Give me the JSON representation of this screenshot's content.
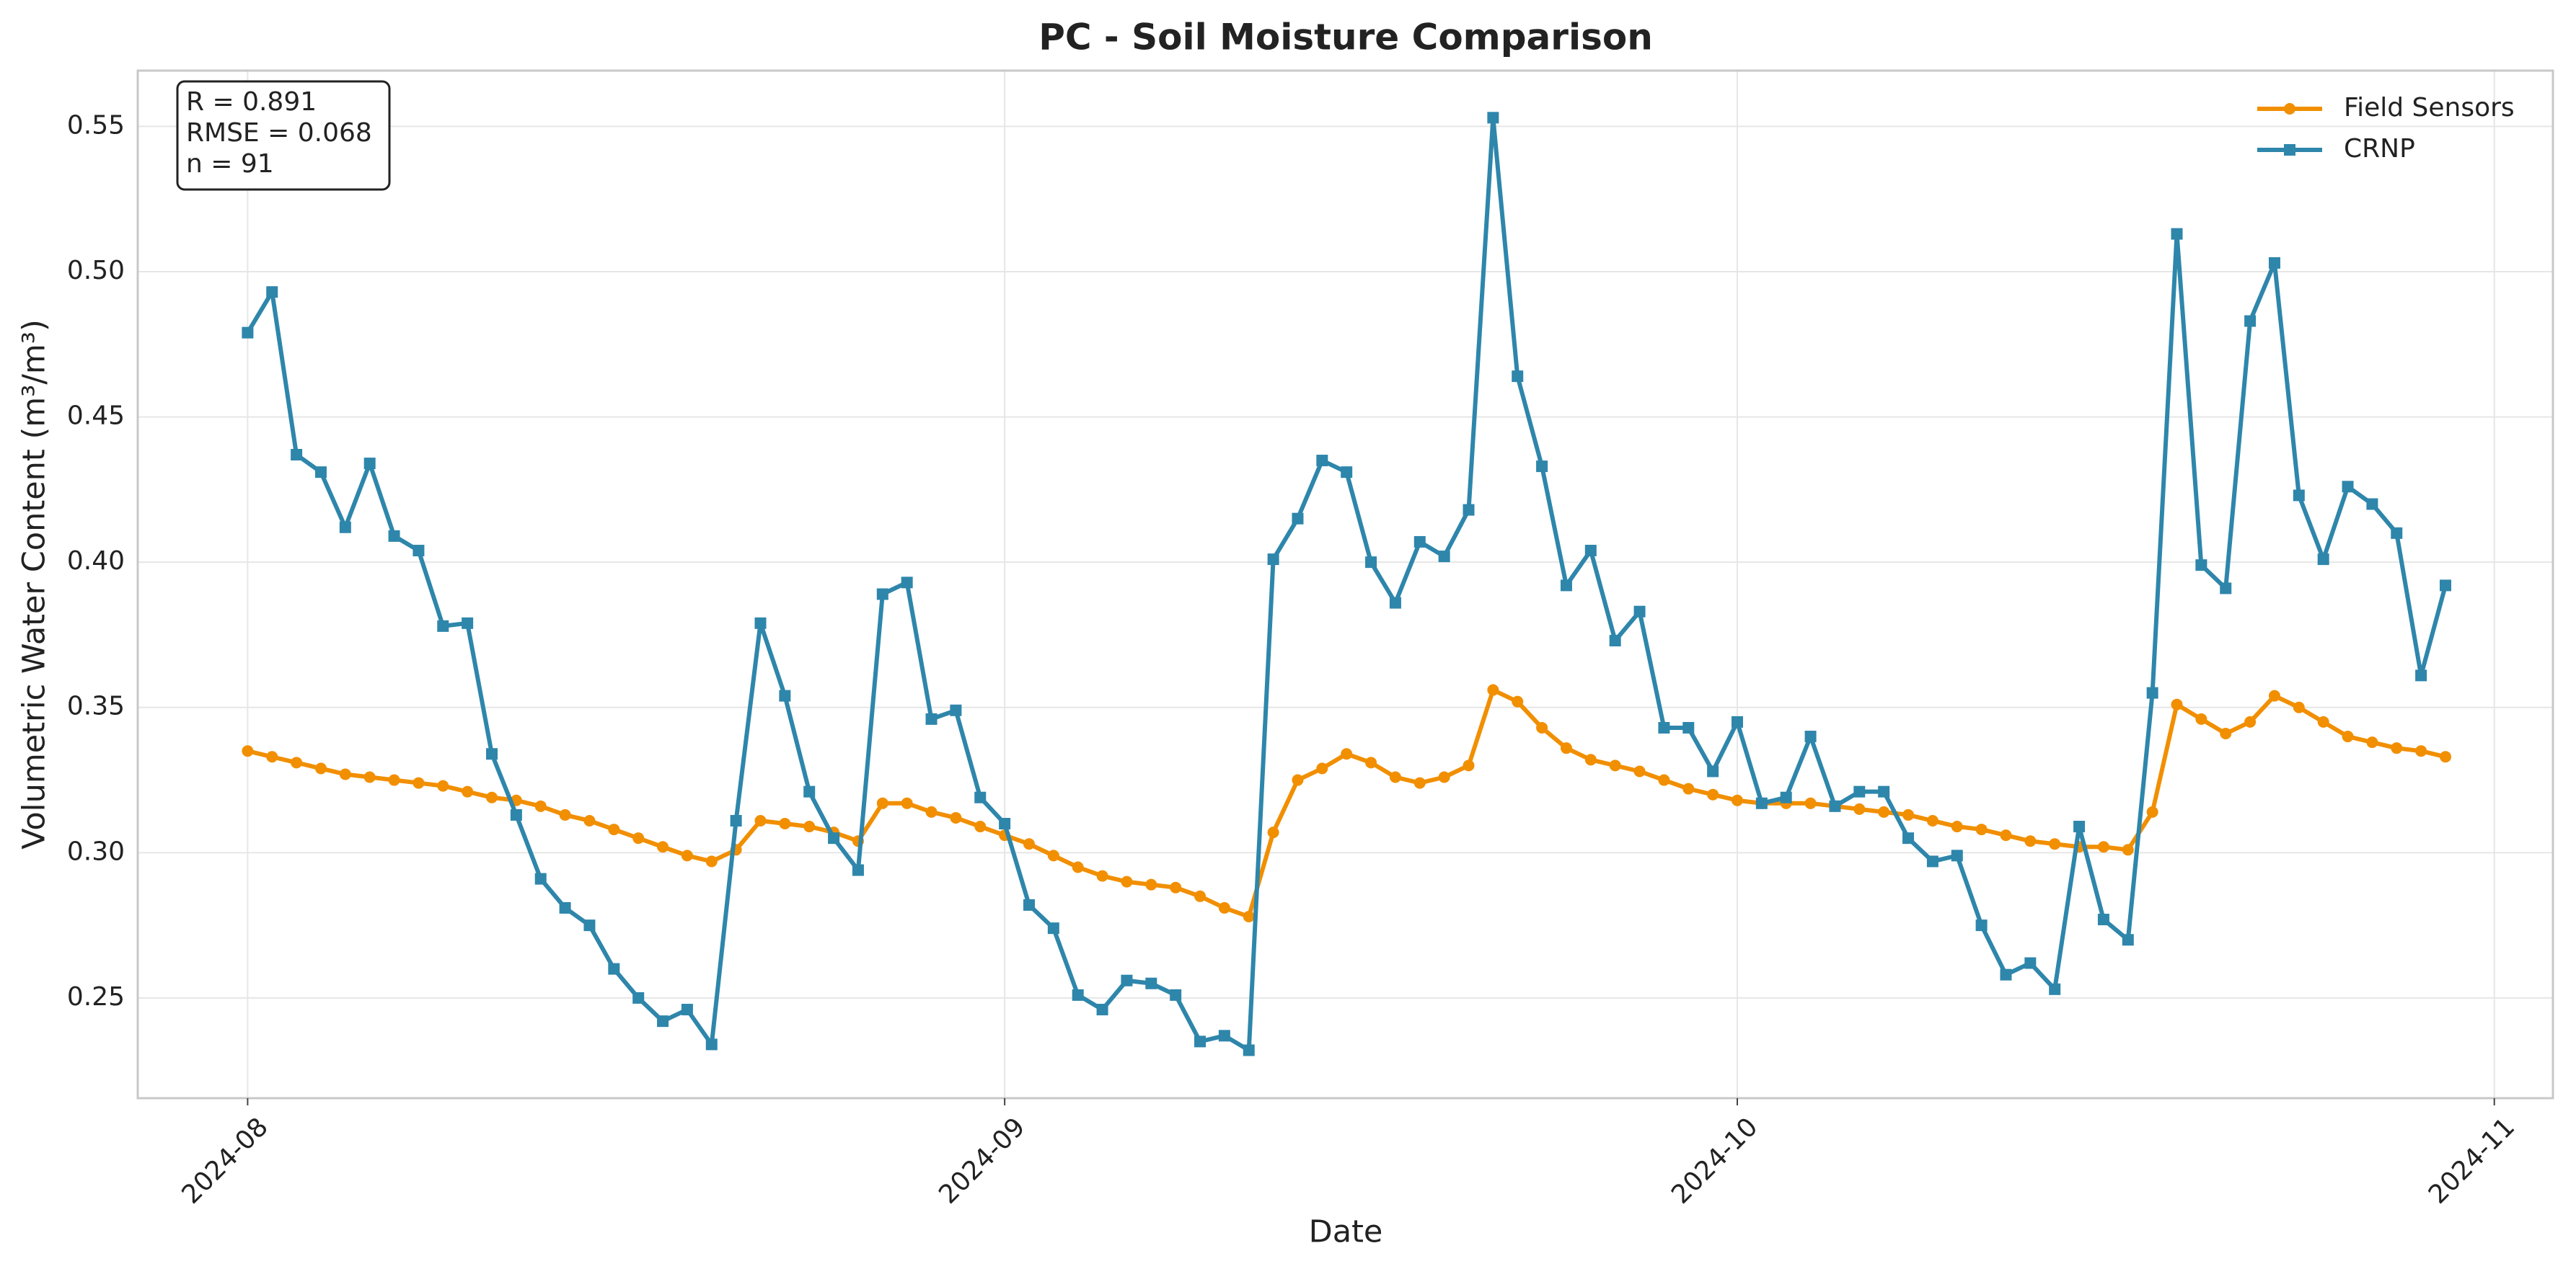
{
  "chart_data": {
    "type": "line",
    "title": "PC - Soil Moisture Comparison",
    "xlabel": "Date",
    "ylabel": "Volumetric Water Content (m³/m³)",
    "annotations": [
      "R = 0.891",
      "RMSE = 0.068",
      "n = 91"
    ],
    "xlim": [
      -4.5,
      94.4
    ],
    "xticks": [
      {
        "value": 0,
        "label": "2024-08"
      },
      {
        "value": 31,
        "label": "2024-09"
      },
      {
        "value": 61,
        "label": "2024-10"
      },
      {
        "value": 92,
        "label": "2024-11"
      }
    ],
    "ylim": [
      0.2155,
      0.5692
    ],
    "yticks": [
      0.25,
      {
        "value": 0.3,
        "label": "0.30"
      },
      0.35,
      {
        "value": 0.4,
        "label": "0.40"
      },
      0.45,
      {
        "value": 0.5,
        "label": "0.50"
      },
      0.55
    ],
    "grid": true,
    "legend": "upper right",
    "series": [
      {
        "name": "Field Sensors",
        "color": "#f18f01",
        "marker": "circle",
        "values": [
          0.335,
          0.333,
          0.331,
          0.329,
          0.327,
          0.326,
          0.325,
          0.324,
          0.323,
          0.321,
          0.319,
          0.318,
          0.316,
          0.313,
          0.311,
          0.308,
          0.305,
          0.302,
          0.299,
          0.297,
          0.301,
          0.311,
          0.31,
          0.309,
          0.307,
          0.304,
          0.317,
          0.317,
          0.314,
          0.312,
          0.309,
          0.306,
          0.303,
          0.299,
          0.295,
          0.292,
          0.29,
          0.289,
          0.288,
          0.285,
          0.281,
          0.278,
          0.307,
          0.325,
          0.329,
          0.334,
          0.331,
          0.326,
          0.324,
          0.326,
          0.33,
          0.356,
          0.352,
          0.343,
          0.336,
          0.332,
          0.33,
          0.328,
          0.325,
          0.322,
          0.32,
          0.318,
          0.317,
          0.317,
          0.317,
          0.316,
          0.315,
          0.314,
          0.313,
          0.311,
          0.309,
          0.308,
          0.306,
          0.304,
          0.303,
          0.302,
          0.302,
          0.301,
          0.314,
          0.351,
          0.346,
          0.341,
          0.345,
          0.354,
          0.35,
          0.345,
          0.34,
          0.338,
          0.336,
          0.335,
          0.333
        ]
      },
      {
        "name": "CRNP",
        "color": "#2e86ab",
        "marker": "square",
        "values": [
          0.479,
          0.493,
          0.437,
          0.431,
          0.412,
          0.434,
          0.409,
          0.404,
          0.378,
          0.379,
          0.334,
          0.313,
          0.291,
          0.281,
          0.275,
          0.26,
          0.25,
          0.242,
          0.246,
          0.234,
          0.311,
          0.379,
          0.354,
          0.321,
          0.305,
          0.294,
          0.389,
          0.393,
          0.346,
          0.349,
          0.319,
          0.31,
          0.282,
          0.274,
          0.251,
          0.246,
          0.256,
          0.255,
          0.251,
          0.235,
          0.237,
          0.232,
          0.401,
          0.415,
          0.435,
          0.431,
          0.4,
          0.386,
          0.407,
          0.402,
          0.418,
          0.553,
          0.464,
          0.433,
          0.392,
          0.404,
          0.373,
          0.383,
          0.343,
          0.343,
          0.328,
          0.345,
          0.317,
          0.319,
          0.34,
          0.316,
          0.321,
          0.321,
          0.305,
          0.297,
          0.299,
          0.275,
          0.258,
          0.262,
          0.253,
          0.309,
          0.277,
          0.27,
          0.355,
          0.513,
          0.399,
          0.391,
          0.483,
          0.503,
          0.423,
          0.401,
          0.426,
          0.42,
          0.41,
          0.361,
          0.392
        ]
      }
    ]
  }
}
